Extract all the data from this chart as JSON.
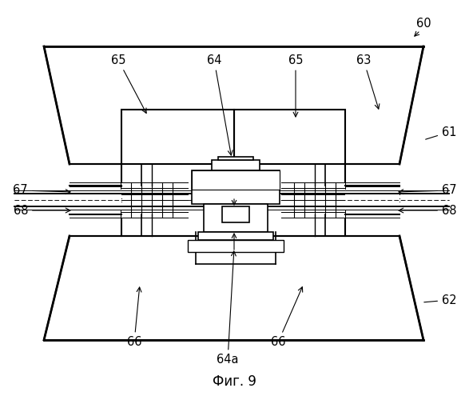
{
  "title": "Фиг. 9",
  "label_60": "60",
  "label_61": "61",
  "label_62": "62",
  "label_63": "63",
  "label_64": "64",
  "label_64a": "64a",
  "label_65_left": "65",
  "label_65_right": "65",
  "label_66_left": "66",
  "label_66_right": "66",
  "label_67_left": "67",
  "label_67_right": "67",
  "label_68_left": "68",
  "label_68_right": "68",
  "bg_color": "#ffffff",
  "line_color": "#000000",
  "font_size": 10.5,
  "hatch_density": "/////"
}
